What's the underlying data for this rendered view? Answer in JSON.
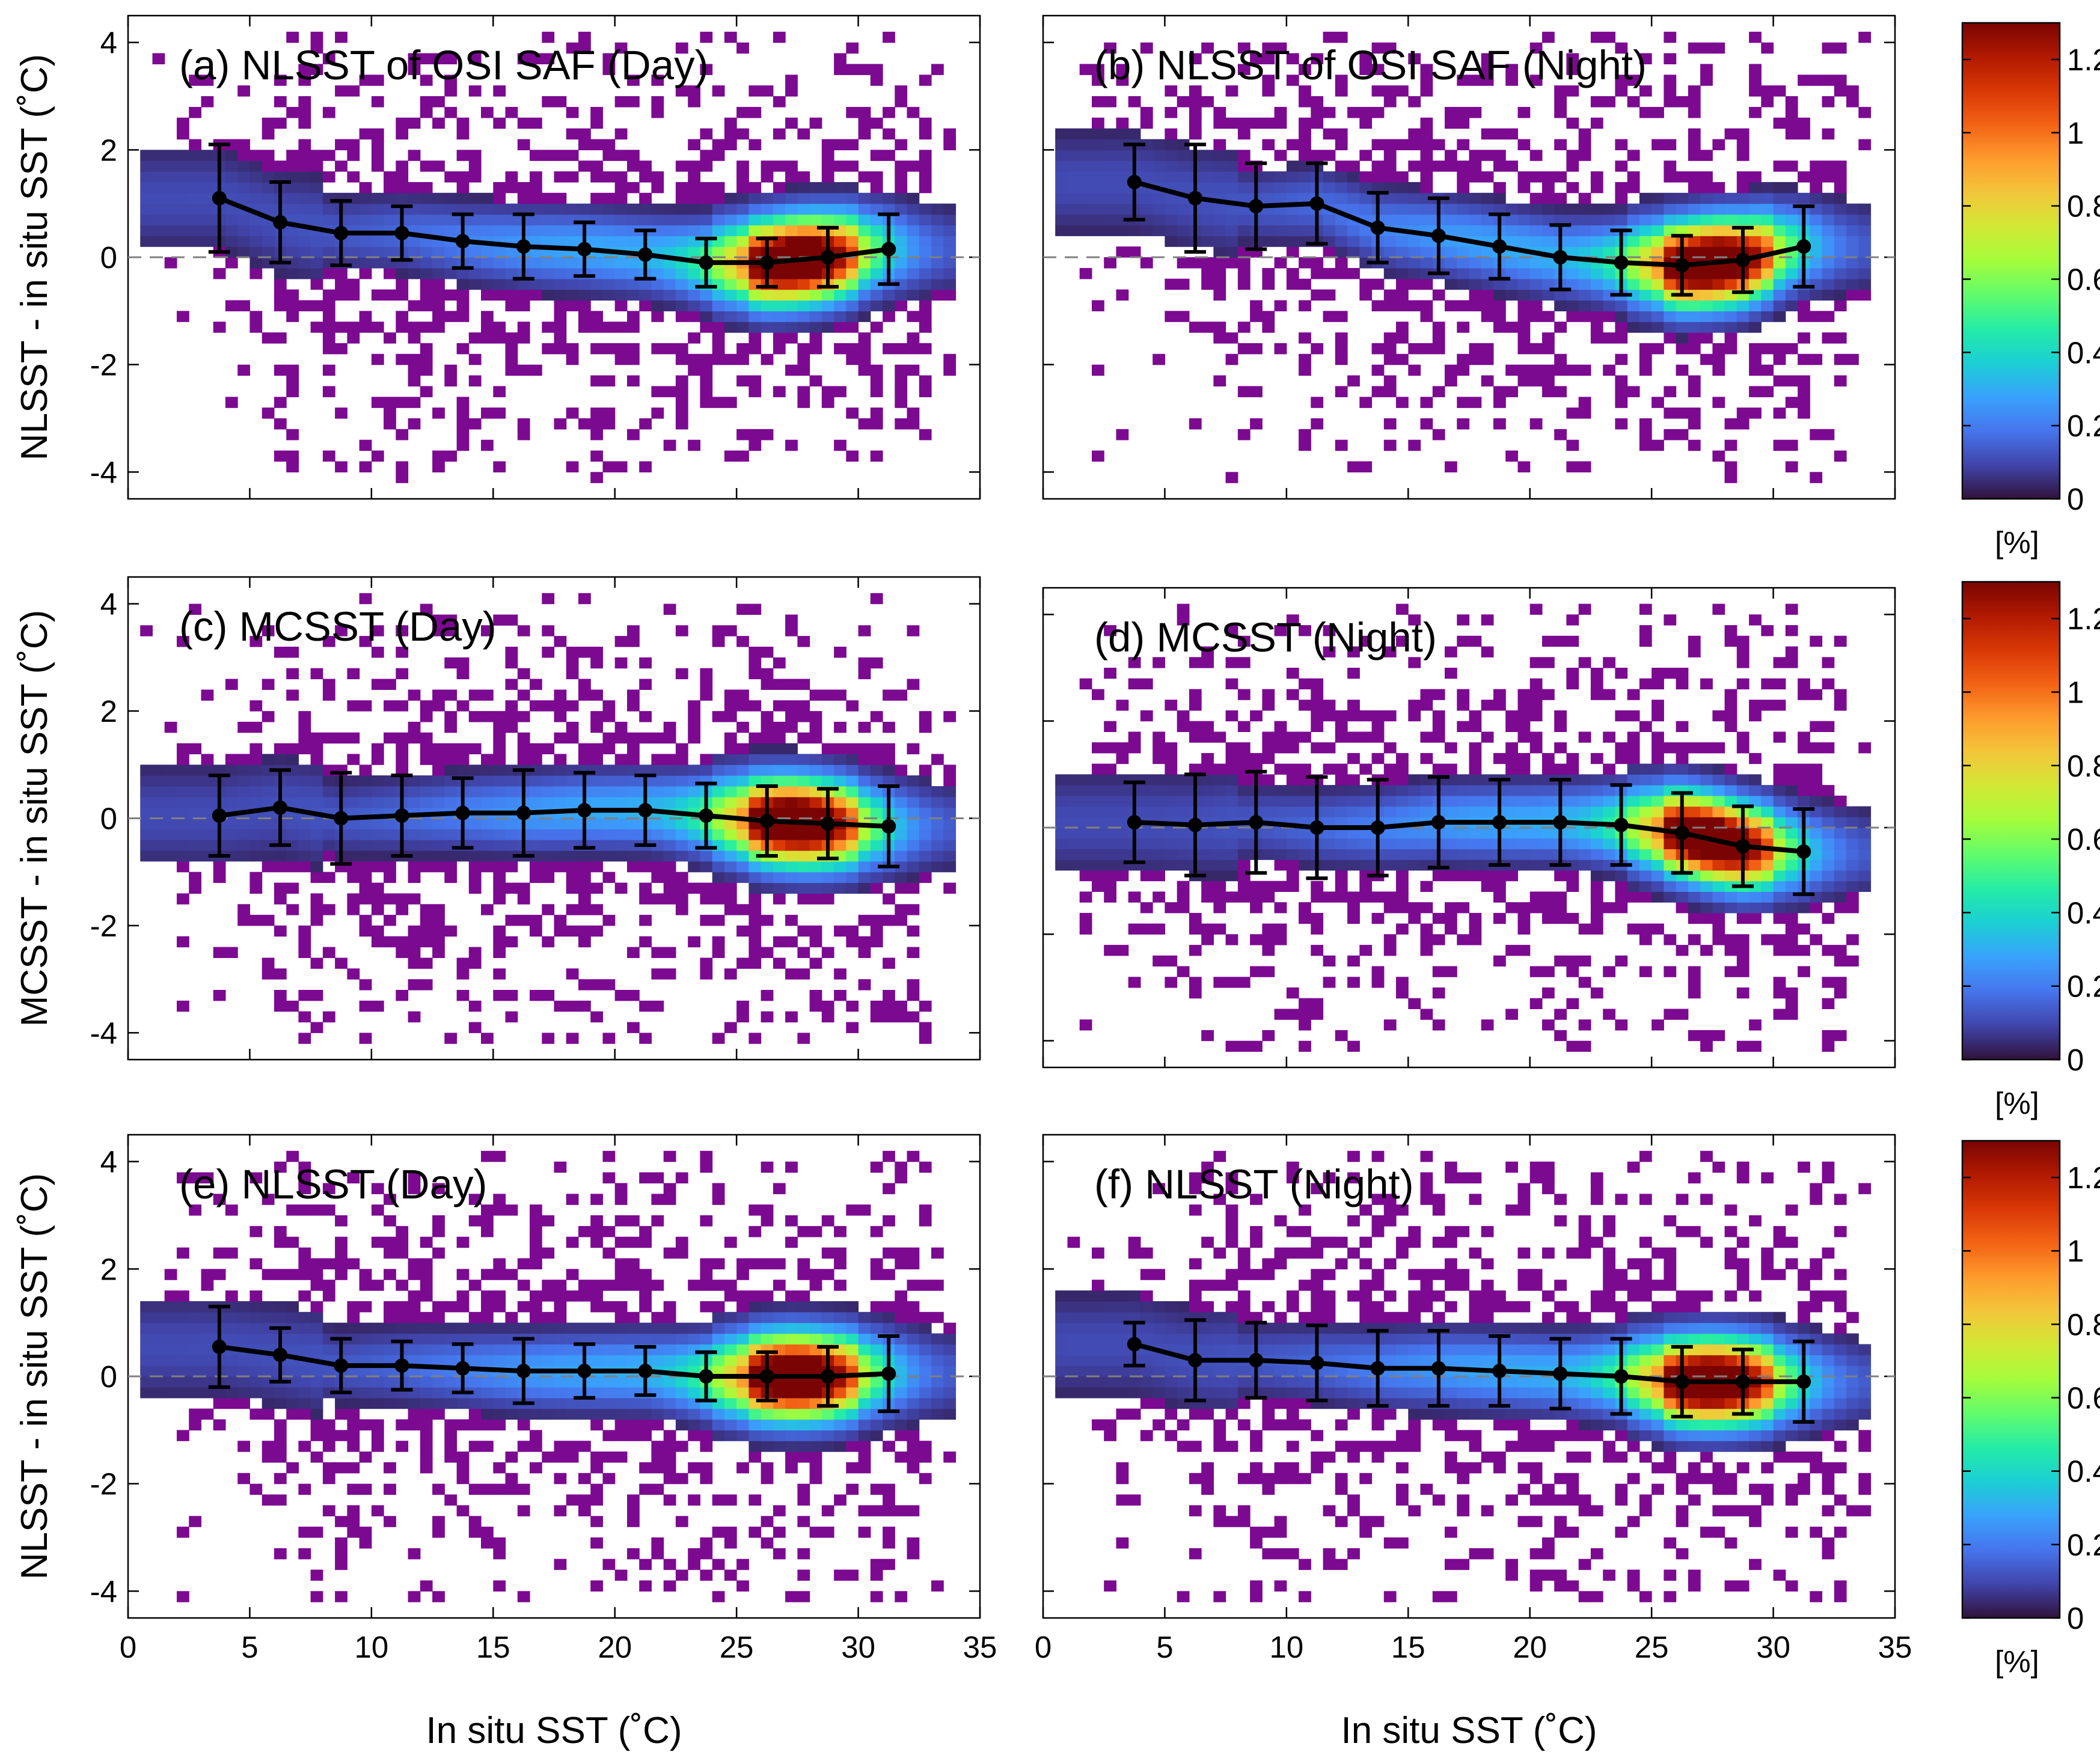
{
  "colors": {
    "colormap": [
      "#30123b",
      "#4145ab",
      "#4675ed",
      "#39a2fc",
      "#1bcfd4",
      "#24eca6",
      "#61fc6c",
      "#a4fc3b",
      "#d1e834",
      "#f3c63a",
      "#fe9b2d",
      "#f36315",
      "#d93806",
      "#b11901",
      "#7a0403"
    ],
    "low_density": "#7b0a91",
    "mean_line": "#000000",
    "zero_line": "#808080"
  },
  "colorbar": {
    "range": [
      0,
      1.3
    ],
    "tick_values": [
      0,
      0.2,
      0.4,
      0.6,
      0.8,
      1,
      1.2
    ],
    "tick_labels": [
      "0",
      "0.2",
      "0.4",
      "0.6",
      "0.8",
      "1",
      "1.2"
    ],
    "unit_label": "[%]"
  },
  "x_axis": {
    "label": "In situ SST (˚C)",
    "range": [
      0,
      35
    ],
    "tick_labels": [
      "0",
      "5",
      "10",
      "15",
      "20",
      "25",
      "30",
      "35"
    ]
  },
  "y_axis": {
    "range": [
      -4.5,
      4.5
    ],
    "tick_labels": [
      "-4",
      "-2",
      "0",
      "2",
      "4"
    ]
  },
  "row_labels": [
    "NLSST - in situ SST (˚C)",
    "MCSST - in situ SST (˚C)",
    "NLSST - in situ SST (˚C)"
  ],
  "chart_data": [
    {
      "type": "heatmap",
      "title": "(a) NLSST of OSI SAF (Day)",
      "xlim": [
        0,
        35
      ],
      "ylim": [
        -4.5,
        4.5
      ],
      "binned_mean": {
        "x": [
          3.75,
          6.25,
          8.75,
          11.25,
          13.75,
          16.25,
          18.75,
          21.25,
          23.75,
          26.25,
          28.75,
          31.25
        ],
        "y": [
          1.1,
          0.65,
          0.45,
          0.45,
          0.3,
          0.2,
          0.15,
          0.05,
          -0.1,
          -0.1,
          0.0,
          0.15
        ],
        "error": [
          1.0,
          0.75,
          0.6,
          0.5,
          0.5,
          0.6,
          0.5,
          0.45,
          0.45,
          0.45,
          0.55,
          0.65
        ]
      }
    },
    {
      "type": "heatmap",
      "title": "(b) NLSST of OSI SAF (Night)",
      "xlim": [
        0,
        35
      ],
      "ylim": [
        -4.5,
        4.5
      ],
      "binned_mean": {
        "x": [
          3.75,
          6.25,
          8.75,
          11.25,
          13.75,
          16.25,
          18.75,
          21.25,
          23.75,
          26.25,
          28.75,
          31.25
        ],
        "y": [
          1.4,
          1.1,
          0.95,
          1.0,
          0.55,
          0.4,
          0.2,
          0.0,
          -0.1,
          -0.15,
          -0.05,
          0.2
        ],
        "error": [
          0.7,
          1.0,
          0.8,
          0.75,
          0.65,
          0.7,
          0.6,
          0.6,
          0.6,
          0.55,
          0.6,
          0.75
        ]
      }
    },
    {
      "type": "heatmap",
      "title": "(c) MCSST (Day)",
      "xlim": [
        0,
        35
      ],
      "ylim": [
        -4.5,
        4.5
      ],
      "binned_mean": {
        "x": [
          3.75,
          6.25,
          8.75,
          11.25,
          13.75,
          16.25,
          18.75,
          21.25,
          23.75,
          26.25,
          28.75,
          31.25
        ],
        "y": [
          0.05,
          0.2,
          0.0,
          0.05,
          0.1,
          0.1,
          0.15,
          0.15,
          0.05,
          -0.05,
          -0.1,
          -0.15
        ],
        "error": [
          0.75,
          0.7,
          0.85,
          0.75,
          0.65,
          0.8,
          0.7,
          0.65,
          0.6,
          0.65,
          0.65,
          0.75
        ]
      }
    },
    {
      "type": "heatmap",
      "title": "(d) MCSST (Night)",
      "xlim": [
        0,
        35
      ],
      "ylim": [
        -4.5,
        4.5
      ],
      "binned_mean": {
        "x": [
          3.75,
          6.25,
          8.75,
          11.25,
          13.75,
          16.25,
          18.75,
          21.25,
          23.75,
          26.25,
          28.75,
          31.25
        ],
        "y": [
          0.1,
          0.05,
          0.1,
          0.0,
          0.0,
          0.1,
          0.1,
          0.1,
          0.05,
          -0.1,
          -0.35,
          -0.45
        ],
        "error": [
          0.75,
          0.95,
          0.95,
          0.95,
          0.9,
          0.85,
          0.8,
          0.8,
          0.75,
          0.75,
          0.75,
          0.8
        ]
      }
    },
    {
      "type": "heatmap",
      "title": "(e) NLSST (Day)",
      "xlim": [
        0,
        35
      ],
      "ylim": [
        -4.5,
        4.5
      ],
      "binned_mean": {
        "x": [
          3.75,
          6.25,
          8.75,
          11.25,
          13.75,
          16.25,
          18.75,
          21.25,
          23.75,
          26.25,
          28.75,
          31.25
        ],
        "y": [
          0.55,
          0.4,
          0.2,
          0.2,
          0.15,
          0.1,
          0.1,
          0.1,
          0.0,
          0.0,
          0.0,
          0.05
        ],
        "error": [
          0.75,
          0.5,
          0.5,
          0.45,
          0.45,
          0.6,
          0.5,
          0.45,
          0.45,
          0.45,
          0.55,
          0.7
        ]
      }
    },
    {
      "type": "heatmap",
      "title": "(f) NLSST (Night)",
      "xlim": [
        0,
        35
      ],
      "ylim": [
        -4.5,
        4.5
      ],
      "binned_mean": {
        "x": [
          3.75,
          6.25,
          8.75,
          11.25,
          13.75,
          16.25,
          18.75,
          21.25,
          23.75,
          26.25,
          28.75,
          31.25
        ],
        "y": [
          0.6,
          0.3,
          0.3,
          0.25,
          0.15,
          0.15,
          0.1,
          0.05,
          0.0,
          -0.1,
          -0.1,
          -0.1
        ],
        "error": [
          0.4,
          0.75,
          0.7,
          0.7,
          0.7,
          0.7,
          0.65,
          0.65,
          0.7,
          0.65,
          0.6,
          0.75
        ]
      }
    }
  ]
}
